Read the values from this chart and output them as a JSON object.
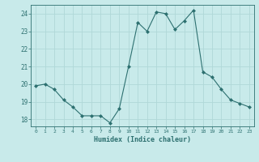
{
  "x": [
    0,
    1,
    2,
    3,
    4,
    5,
    6,
    7,
    8,
    9,
    10,
    11,
    12,
    13,
    14,
    15,
    16,
    17,
    18,
    19,
    20,
    21,
    22,
    23
  ],
  "y": [
    19.9,
    20.0,
    19.7,
    19.1,
    18.7,
    18.2,
    18.2,
    18.2,
    17.8,
    18.6,
    21.0,
    23.5,
    23.0,
    24.1,
    24.0,
    23.1,
    23.6,
    24.2,
    20.7,
    20.4,
    19.7,
    19.1,
    18.9,
    18.7
  ],
  "line_color": "#2d7070",
  "marker": "D",
  "marker_size": 2.0,
  "bg_color": "#c8eaea",
  "grid_color": "#b0d8d8",
  "tick_color": "#2d7070",
  "label_color": "#2d7070",
  "xlabel": "Humidex (Indice chaleur)",
  "ylim": [
    17.6,
    24.5
  ],
  "xlim": [
    -0.5,
    23.5
  ],
  "yticks": [
    18,
    19,
    20,
    21,
    22,
    23,
    24
  ],
  "xticks": [
    0,
    1,
    2,
    3,
    4,
    5,
    6,
    7,
    8,
    9,
    10,
    11,
    12,
    13,
    14,
    15,
    16,
    17,
    18,
    19,
    20,
    21,
    22,
    23
  ]
}
